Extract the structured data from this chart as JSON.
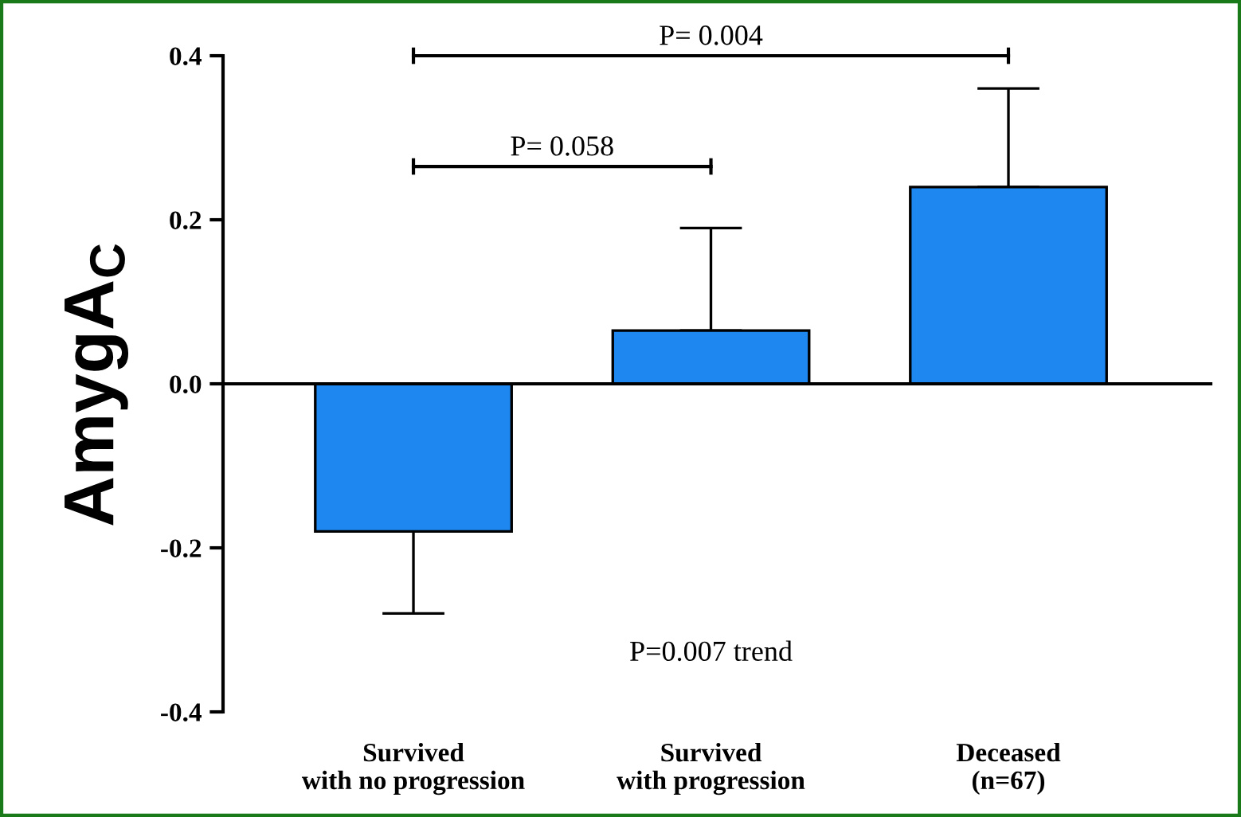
{
  "chart_data": {
    "type": "bar",
    "ylabel": "AmygA$_{C}$",
    "categories": [
      "Survived\nwith no progression",
      "Survived\nwith progression",
      "Deceased\n(n=67)"
    ],
    "values": [
      -0.18,
      0.065,
      0.24
    ],
    "errors": [
      [
        -0.28,
        -0.18
      ],
      [
        0.065,
        0.19
      ],
      [
        0.24,
        0.36
      ]
    ],
    "color": "#1e88f0",
    "ylim": [
      -0.4,
      0.4
    ],
    "yticks": [
      {
        "value": -0.4,
        "label": "-0.4"
      },
      {
        "value": -0.2,
        "label": "-0.2"
      },
      {
        "value": 0.0,
        "label": "0.0"
      },
      0.2,
      0.4
    ],
    "annotations": [
      "P= 0.004",
      "P= 0.058",
      "P=0.007 trend"
    ]
  }
}
